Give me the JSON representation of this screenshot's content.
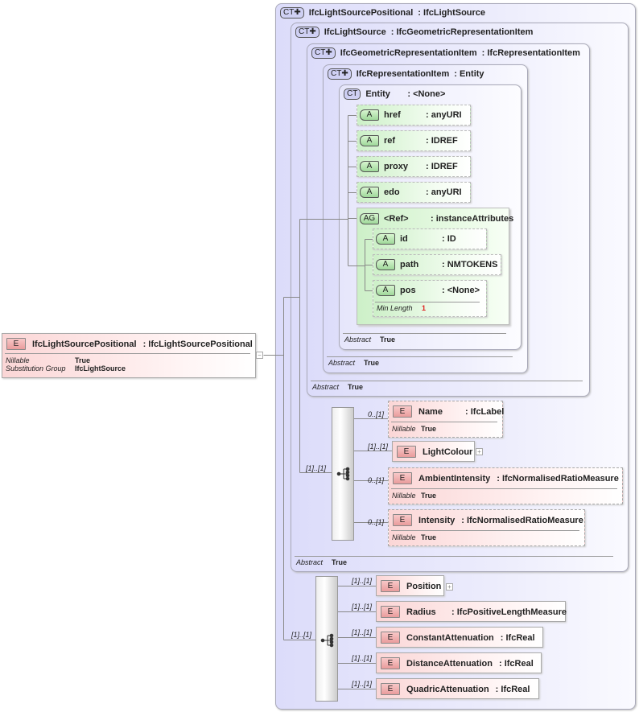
{
  "root": {
    "badge": "E",
    "name": "IfcLightSourcePositional",
    "type": ": IfcLightSourcePositional",
    "props": [
      {
        "k": "Nillable",
        "v": "True"
      },
      {
        "k": "Substitution Group",
        "v": "IfcLightSource"
      }
    ],
    "toggle": "−"
  },
  "complex_types": [
    {
      "badge": "CT",
      "name": "IfcLightSourcePositional",
      "type": ": IfcLightSource"
    },
    {
      "badge": "CT",
      "name": "IfcLightSource",
      "type": ": IfcGeometricRepresentationItem",
      "abstract_k": "Abstract",
      "abstract_v": "True"
    },
    {
      "badge": "CT",
      "name": "IfcGeometricRepresentationItem",
      "type": ": IfcRepresentationItem",
      "abstract_k": "Abstract",
      "abstract_v": "True"
    },
    {
      "badge": "CT",
      "name": "IfcRepresentationItem",
      "type": ": Entity",
      "abstract_k": "Abstract",
      "abstract_v": "True"
    },
    {
      "badge": "CT",
      "name": "Entity",
      "type": ": <None>",
      "abstract_k": "Abstract",
      "abstract_v": "True"
    }
  ],
  "attributes": [
    {
      "badge": "A",
      "name": "href",
      "type": ": anyURI"
    },
    {
      "badge": "A",
      "name": "ref",
      "type": ": IDREF"
    },
    {
      "badge": "A",
      "name": "proxy",
      "type": ": IDREF"
    },
    {
      "badge": "A",
      "name": "edo",
      "type": ": anyURI"
    }
  ],
  "attribute_group": {
    "badge": "AG",
    "name": "<Ref>",
    "type": ": instanceAttributes",
    "items": [
      {
        "badge": "A",
        "name": "id",
        "type": ": ID"
      },
      {
        "badge": "A",
        "name": "path",
        "type": ": NMTOKENS"
      },
      {
        "badge": "A",
        "name": "pos",
        "type": ": <None>",
        "prop_k": "Min Length",
        "prop_v": "1"
      }
    ]
  },
  "sequence1": {
    "mult": "[1]..[1]",
    "items": [
      {
        "mult": "0..[1]",
        "badge": "E",
        "name": "Name",
        "type": ": IfcLabel",
        "prop_k": "Nillable",
        "prop_v": "True"
      },
      {
        "mult": "[1]..[1]",
        "badge": "E",
        "name": "LightColour",
        "toggle": "+"
      },
      {
        "mult": "0..[1]",
        "badge": "E",
        "name": "AmbientIntensity",
        "type": ": IfcNormalisedRatioMeasure",
        "prop_k": "Nillable",
        "prop_v": "True"
      },
      {
        "mult": "0..[1]",
        "badge": "E",
        "name": "Intensity",
        "type": ": IfcNormalisedRatioMeasure",
        "prop_k": "Nillable",
        "prop_v": "True"
      }
    ]
  },
  "sequence2": {
    "mult": "[1]..[1]",
    "items": [
      {
        "mult": "[1]..[1]",
        "badge": "E",
        "name": "Position",
        "toggle": "+"
      },
      {
        "mult": "[1]..[1]",
        "badge": "E",
        "name": "Radius",
        "type": ": IfcPositiveLengthMeasure"
      },
      {
        "mult": "[1]..[1]",
        "badge": "E",
        "name": "ConstantAttenuation",
        "type": ": IfcReal"
      },
      {
        "mult": "[1]..[1]",
        "badge": "E",
        "name": "DistanceAttenuation",
        "type": ": IfcReal"
      },
      {
        "mult": "[1]..[1]",
        "badge": "E",
        "name": "QuadricAttenuation",
        "type": ": IfcReal"
      }
    ]
  },
  "colors": {
    "element": "#fbd6d6",
    "complex_type": "#dcdcfa",
    "attribute": "#cdf0c8",
    "min_length": "#e02020"
  }
}
